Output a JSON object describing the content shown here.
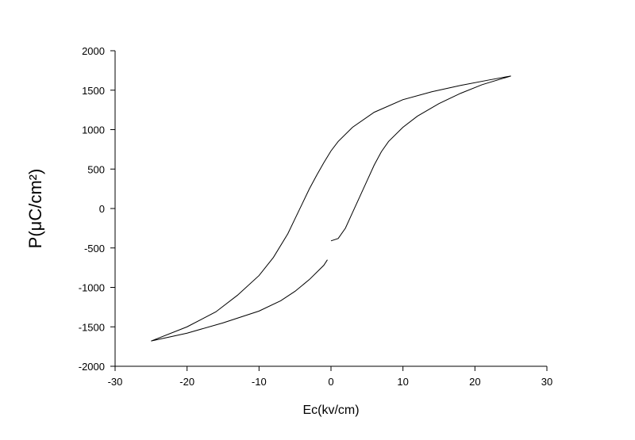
{
  "chart_data": {
    "type": "line",
    "x_label": "Ec(kv/cm)",
    "y_label": "P(μC/cm²)",
    "xlim": [
      -30,
      30
    ],
    "xticks": [
      -30,
      -20,
      -10,
      0,
      10,
      20,
      30
    ],
    "ylim": [
      -2000,
      2000
    ],
    "yticks": [
      -2000,
      -1500,
      -1000,
      -500,
      0,
      500,
      1000,
      1500,
      2000
    ],
    "grid": false,
    "series": [
      {
        "color": "#000000",
        "x": [
          0,
          1,
          2,
          3,
          4,
          5,
          6,
          7,
          8,
          10,
          12,
          15,
          18,
          21,
          25,
          22,
          18,
          14,
          10,
          6,
          3,
          1,
          0,
          -1,
          -2,
          -3,
          -4,
          -5,
          -6,
          -8,
          -10,
          -13,
          -16,
          -20,
          -25,
          -20,
          -15,
          -10,
          -7,
          -5,
          -3,
          -1,
          -0.5
        ],
        "values": [
          -410,
          -380,
          -250,
          -50,
          150,
          350,
          550,
          720,
          850,
          1030,
          1170,
          1330,
          1460,
          1570,
          1680,
          1630,
          1560,
          1480,
          1380,
          1220,
          1030,
          850,
          730,
          580,
          420,
          250,
          60,
          -130,
          -320,
          -620,
          -850,
          -1100,
          -1310,
          -1500,
          -1680,
          -1580,
          -1450,
          -1300,
          -1170,
          -1050,
          -900,
          -720,
          -650
        ]
      }
    ]
  }
}
